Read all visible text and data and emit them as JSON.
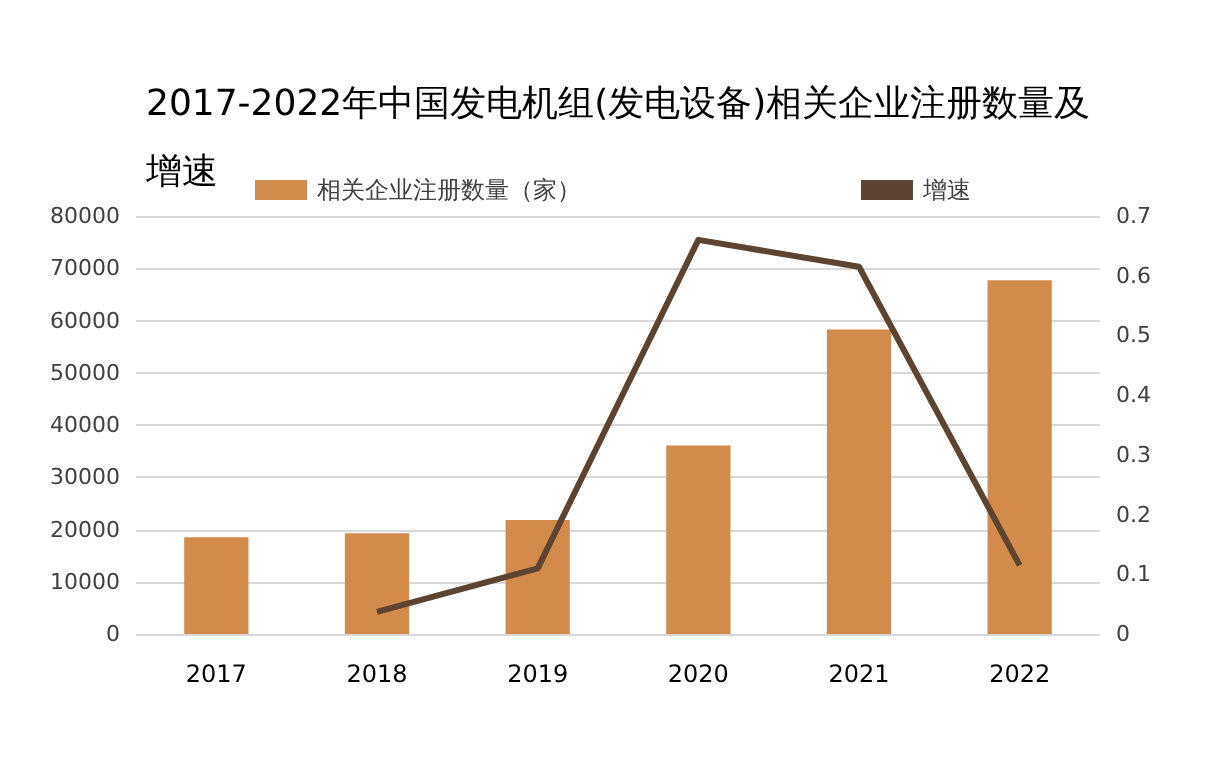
{
  "chart_data": {
    "type": "bar",
    "title": "2017-2022年中国发电机组(发电设备)相关企业注册数量及增速",
    "categories": [
      "2017",
      "2018",
      "2019",
      "2020",
      "2021",
      "2022"
    ],
    "series": [
      {
        "name": "相关企业注册数量（家）",
        "color": "#d38b4c",
        "values": [
          18500,
          19300,
          21800,
          36100,
          58300,
          67700
        ]
      },
      {
        "name": "增速",
        "type": "line",
        "axis": "y2",
        "color": "#5c4431",
        "values": [
          null,
          0.037,
          0.11,
          0.66,
          0.615,
          0.115
        ]
      }
    ],
    "ylim": [
      0,
      80000
    ],
    "yticks": [
      0,
      10000,
      20000,
      30000,
      40000,
      50000,
      60000,
      70000,
      80000
    ],
    "y2lim": [
      0,
      0.7
    ],
    "y2ticks": [
      0,
      0.1,
      0.2,
      0.3,
      0.4,
      0.5,
      0.6,
      0.7
    ],
    "grid": "y",
    "legend": "top",
    "marker": "none"
  }
}
